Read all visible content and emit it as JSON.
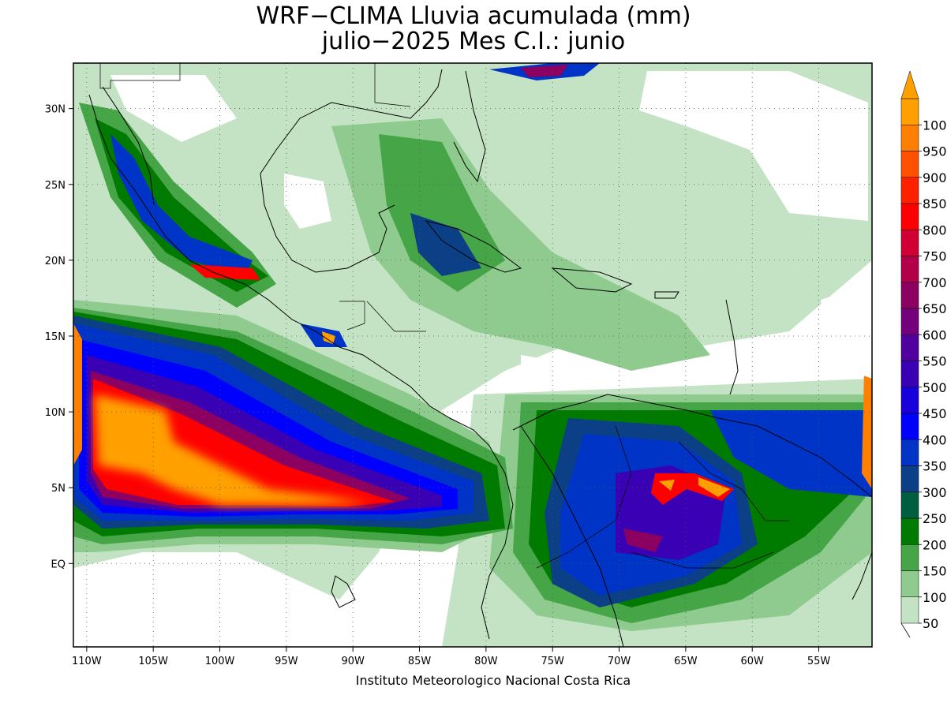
{
  "title": {
    "line1": "WRF−CLIMA Lluvia acumulada (mm)",
    "line2": "julio−2025 Mes C.I.: junio"
  },
  "credit": "Instituto Meteorologico Nacional Costa Rica",
  "map": {
    "lon_range": [
      -111,
      -51
    ],
    "lat_range": [
      -5.5,
      33
    ],
    "x_ticks": [
      {
        "lon": -110,
        "label": "110W"
      },
      {
        "lon": -105,
        "label": "105W"
      },
      {
        "lon": -100,
        "label": "100W"
      },
      {
        "lon": -95,
        "label": "95W"
      },
      {
        "lon": -90,
        "label": "90W"
      },
      {
        "lon": -85,
        "label": "85W"
      },
      {
        "lon": -80,
        "label": "80W"
      },
      {
        "lon": -75,
        "label": "75W"
      },
      {
        "lon": -70,
        "label": "70W"
      },
      {
        "lon": -65,
        "label": "65W"
      },
      {
        "lon": -60,
        "label": "60W"
      },
      {
        "lon": -55,
        "label": "55W"
      }
    ],
    "y_ticks": [
      {
        "lat": 30,
        "label": "30N"
      },
      {
        "lat": 25,
        "label": "25N"
      },
      {
        "lat": 20,
        "label": "20N"
      },
      {
        "lat": 15,
        "label": "15N"
      },
      {
        "lat": 10,
        "label": "10N"
      },
      {
        "lat": 5,
        "label": "5N"
      },
      {
        "lat": 0,
        "label": "EQ"
      }
    ],
    "grid": "dotted"
  },
  "legend": {
    "levels": [
      "50",
      "100",
      "150",
      "200",
      "250",
      "300",
      "350",
      "400",
      "450",
      "500",
      "550",
      "600",
      "650",
      "700",
      "750",
      "800",
      "850",
      "900",
      "950",
      "1000"
    ],
    "colors": [
      "#c4e3c4",
      "#8fcb8f",
      "#46a546",
      "#007b00",
      "#005e40",
      "#0b3f86",
      "#0034c6",
      "#0000ff",
      "#1800dc",
      "#3a00b4",
      "#4f009e",
      "#74007e",
      "#8b0060",
      "#b10048",
      "#d00034",
      "#ff0000",
      "#ff2000",
      "#ff5000",
      "#ff8000",
      "#ffa000"
    ]
  }
}
